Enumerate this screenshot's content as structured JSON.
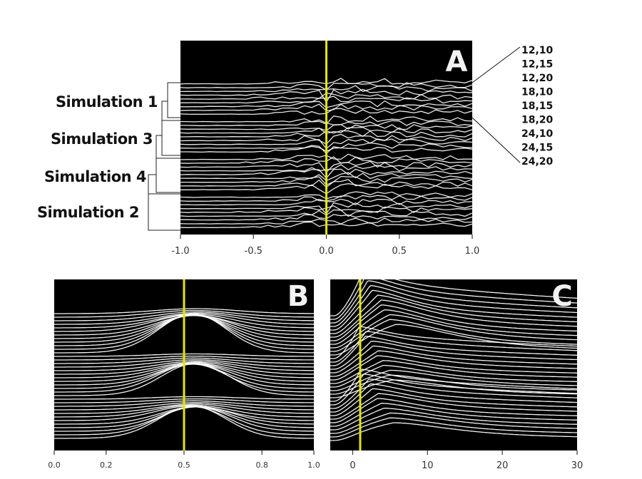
{
  "chart_data": [
    {
      "panel": "A",
      "type": "line",
      "panel_label": "A",
      "xlim": [
        -1.0,
        1.0
      ],
      "x_ticks": [
        "-1.0",
        "-0.5",
        "0.0",
        "0.5",
        "1.0"
      ],
      "x_tick_values": [
        -1.0,
        -0.5,
        0.0,
        0.5,
        1.0
      ],
      "marker_x": 0.0,
      "groups": [
        "Simulation 1",
        "Simulation 3",
        "Simulation 4",
        "Simulation 2"
      ],
      "legend_entries": [
        "12,10",
        "12,15",
        "12,20",
        "18,10",
        "18,15",
        "18,20",
        "24,10",
        "24,15",
        "24,20"
      ],
      "traces_per_group": 9,
      "background": "#000000",
      "line_color": "#ffffff",
      "marker_color": "#e6e600",
      "grid": false
    },
    {
      "panel": "B",
      "type": "line",
      "panel_label": "B",
      "xlim": [
        0.0,
        1.0
      ],
      "x_ticks": [
        "0.0",
        "0.2",
        "0.5",
        "0.8",
        "1.0"
      ],
      "x_tick_values": [
        0.0,
        0.2,
        0.5,
        0.8,
        1.0
      ],
      "marker_x": 0.5,
      "series_count": 36,
      "background": "#000000",
      "line_color": "#ffffff",
      "marker_color": "#e6e600",
      "grid": false
    },
    {
      "panel": "C",
      "type": "line",
      "panel_label": "C",
      "xlim": [
        -3,
        30
      ],
      "x_ticks": [
        "0",
        "10",
        "20",
        "30"
      ],
      "x_tick_values": [
        0,
        10,
        20,
        30
      ],
      "marker_x": 1,
      "series_count": 36,
      "background": "#000000",
      "line_color": "#ffffff",
      "marker_color": "#e6e600",
      "grid": false
    }
  ]
}
